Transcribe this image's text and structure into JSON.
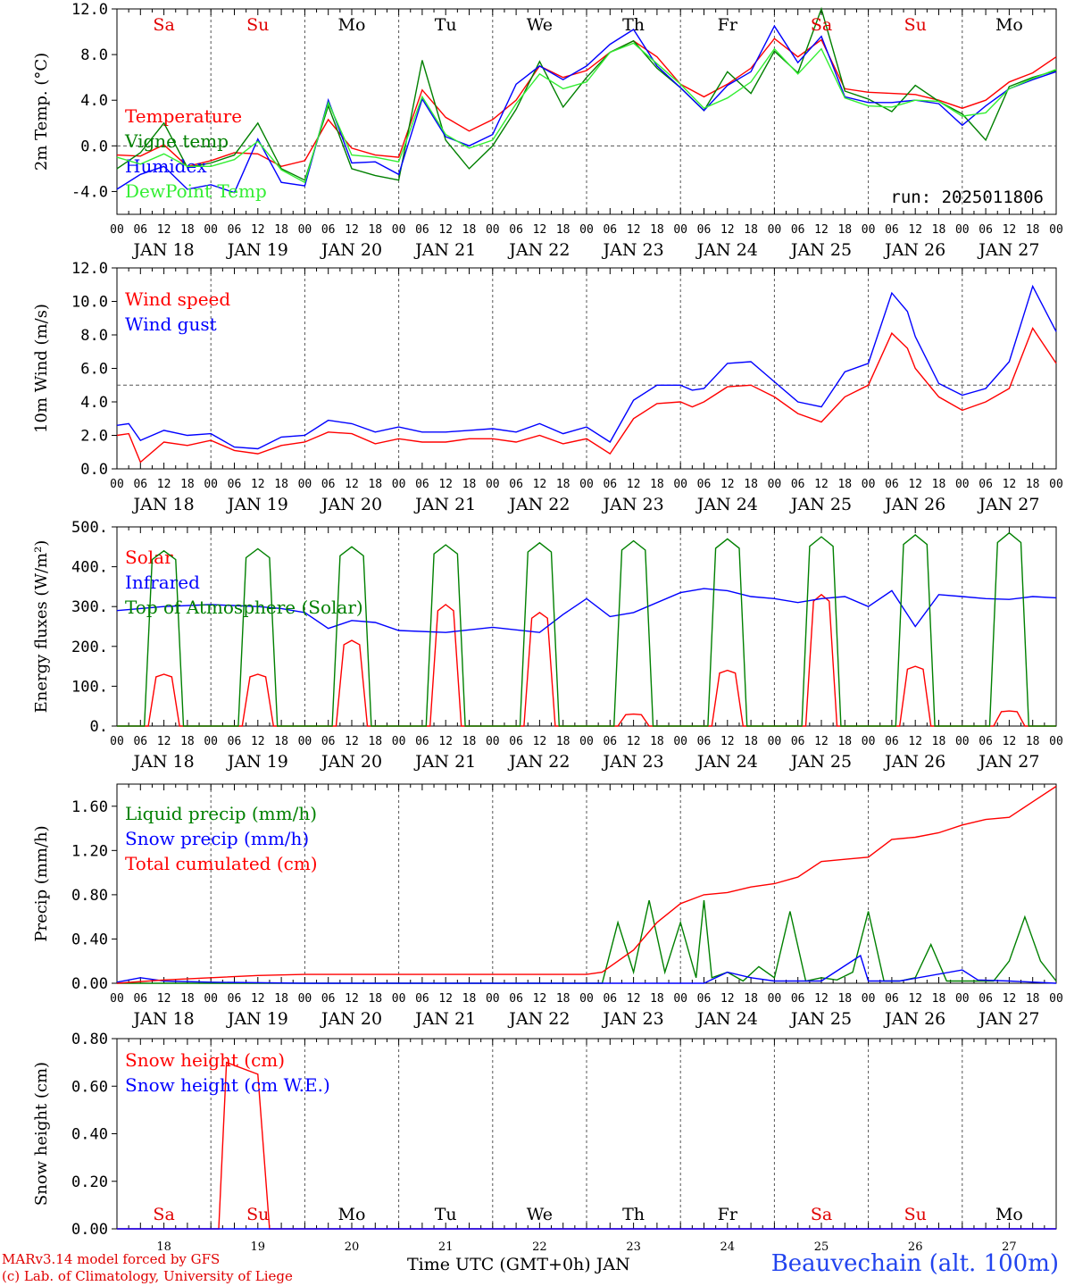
{
  "chart_data": [
    {
      "type": "line",
      "ylabel": "2m Temp. (°C)",
      "ylim": [
        -6,
        12
      ],
      "yticks": [
        "-4.0",
        "0.0",
        "4.0",
        "8.0",
        "12.0"
      ],
      "x_unit": "hours since JAN 18 00 UTC",
      "x": [
        0,
        6,
        12,
        18,
        24,
        30,
        36,
        42,
        48,
        54,
        60,
        66,
        72,
        78,
        84,
        90,
        96,
        102,
        108,
        114,
        120,
        126,
        132,
        138,
        144,
        150,
        156,
        162,
        168,
        174,
        180,
        186,
        192,
        198,
        204,
        210,
        216,
        222,
        228,
        234,
        240
      ],
      "reference_line": 0,
      "run_label": "run: 2025011806",
      "day_labels": [
        "Sa",
        "Su",
        "Mo",
        "Tu",
        "We",
        "Th",
        "Fr",
        "Sa",
        "Su",
        "Mo"
      ],
      "day_label_colors": [
        "#e00000",
        "#e00000",
        "#000000",
        "#000000",
        "#000000",
        "#000000",
        "#000000",
        "#e00000",
        "#e00000",
        "#000000"
      ],
      "series": [
        {
          "name": "Temperature",
          "color": "#ff0000",
          "values": [
            -0.8,
            -0.9,
            0.1,
            -1.8,
            -1.3,
            -0.6,
            -0.7,
            -1.8,
            -1.3,
            2.3,
            -0.2,
            -0.8,
            -1.0,
            4.9,
            2.5,
            1.3,
            2.3,
            4.0,
            7.0,
            6.0,
            6.6,
            8.2,
            9.2,
            7.8,
            5.4,
            4.3,
            5.4,
            6.8,
            9.4,
            7.8,
            9.3,
            5.0,
            4.7,
            4.6,
            4.5,
            4.0,
            3.3,
            4.0,
            5.6,
            6.4,
            7.8
          ]
        },
        {
          "name": "Vigne temp",
          "color": "#008000",
          "values": [
            -2.0,
            -0.6,
            2.0,
            -1.9,
            -1.5,
            -0.8,
            2.0,
            -2.0,
            -3.0,
            3.5,
            -2.0,
            -2.6,
            -3.0,
            7.5,
            0.5,
            -2.0,
            0.0,
            3.2,
            7.4,
            3.4,
            6.0,
            8.2,
            9.2,
            6.8,
            5.1,
            3.1,
            6.5,
            4.6,
            8.3,
            6.4,
            12.0,
            4.8,
            4.1,
            3.0,
            5.3,
            3.9,
            2.8,
            0.5,
            5.2,
            6.0,
            6.6
          ]
        },
        {
          "name": "Humidex",
          "color": "#0000ff",
          "values": [
            -3.8,
            -2.5,
            -1.8,
            -3.8,
            -3.4,
            -4.1,
            0.6,
            -3.2,
            -3.5,
            4.0,
            -1.5,
            -1.4,
            -2.5,
            4.1,
            0.8,
            0.0,
            1.0,
            5.4,
            7.0,
            5.8,
            7.0,
            8.9,
            10.2,
            7.0,
            5.1,
            3.1,
            5.3,
            6.5,
            10.5,
            7.3,
            9.6,
            4.3,
            3.8,
            3.8,
            4.0,
            3.7,
            1.8,
            3.5,
            5.0,
            5.8,
            6.5
          ]
        },
        {
          "name": "DewPoint Temp",
          "color": "#33ee33",
          "values": [
            -1.0,
            -1.6,
            -0.7,
            -1.8,
            -1.8,
            -1.2,
            0.4,
            -2.1,
            -3.2,
            3.8,
            -0.8,
            -1.0,
            -1.4,
            4.3,
            1.0,
            -0.2,
            0.5,
            3.7,
            6.3,
            5.0,
            5.6,
            8.2,
            9.0,
            7.2,
            5.4,
            3.3,
            4.2,
            5.6,
            8.5,
            6.3,
            8.5,
            4.2,
            3.5,
            3.4,
            4.0,
            3.9,
            2.6,
            2.9,
            5.0,
            5.9,
            6.7
          ]
        }
      ]
    },
    {
      "type": "line",
      "ylabel": "10m Wind (m/s)",
      "ylim": [
        0,
        12
      ],
      "yticks": [
        "0.0",
        "2.0",
        "4.0",
        "6.0",
        "8.0",
        "10.0",
        "12.0"
      ],
      "x_unit": "hours since JAN 18 00 UTC",
      "x": [
        0,
        3,
        6,
        12,
        18,
        24,
        30,
        36,
        42,
        48,
        54,
        60,
        66,
        72,
        78,
        84,
        90,
        96,
        102,
        108,
        114,
        120,
        126,
        132,
        138,
        144,
        147,
        150,
        156,
        162,
        168,
        174,
        180,
        186,
        192,
        198,
        202,
        204,
        210,
        216,
        222,
        228,
        234,
        240
      ],
      "reference_line": 5,
      "series": [
        {
          "name": "Wind speed",
          "color": "#ff0000",
          "values": [
            2.0,
            2.1,
            0.4,
            1.6,
            1.4,
            1.7,
            1.1,
            0.9,
            1.4,
            1.6,
            2.2,
            2.1,
            1.5,
            1.8,
            1.6,
            1.6,
            1.8,
            1.8,
            1.6,
            2.0,
            1.5,
            1.8,
            0.9,
            3.0,
            3.9,
            4.0,
            3.7,
            4.0,
            4.9,
            5.0,
            4.3,
            3.3,
            2.8,
            4.3,
            5.0,
            8.1,
            7.2,
            6.0,
            4.3,
            3.5,
            4.0,
            4.8,
            8.4,
            6.3
          ]
        },
        {
          "name": "Wind gust",
          "color": "#0000ff",
          "values": [
            2.6,
            2.7,
            1.7,
            2.3,
            2.0,
            2.1,
            1.3,
            1.2,
            1.9,
            2.0,
            2.9,
            2.7,
            2.2,
            2.5,
            2.2,
            2.2,
            2.3,
            2.4,
            2.2,
            2.7,
            2.1,
            2.5,
            1.6,
            4.1,
            5.0,
            5.0,
            4.7,
            4.8,
            6.3,
            6.4,
            5.2,
            4.0,
            3.7,
            5.8,
            6.3,
            10.5,
            9.4,
            7.9,
            5.1,
            4.4,
            4.8,
            6.4,
            10.9,
            8.2
          ]
        }
      ]
    },
    {
      "type": "line",
      "ylabel": "Energy fluxes (W/m²)",
      "ylim": [
        0,
        500
      ],
      "yticks": [
        "0.",
        "100.",
        "200.",
        "300.",
        "400.",
        "500."
      ],
      "x_unit": "hours since JAN 18 00 UTC",
      "series": [
        {
          "name": "Solar",
          "color": "#ff0000",
          "peaks": [
            130,
            130,
            215,
            305,
            285,
            30,
            140,
            330,
            150,
            38
          ]
        },
        {
          "name": "Infrared",
          "color": "#0000ff",
          "x": [
            0,
            12,
            24,
            36,
            42,
            48,
            54,
            60,
            66,
            72,
            84,
            96,
            108,
            114,
            120,
            126,
            132,
            144,
            150,
            156,
            162,
            168,
            174,
            180,
            186,
            192,
            198,
            204,
            210,
            216,
            222,
            228,
            234,
            240
          ],
          "values": [
            290,
            300,
            305,
            300,
            295,
            285,
            245,
            265,
            260,
            240,
            235,
            248,
            235,
            280,
            320,
            275,
            285,
            335,
            345,
            340,
            325,
            320,
            310,
            320,
            325,
            300,
            340,
            250,
            330,
            325,
            320,
            318,
            325,
            322
          ]
        },
        {
          "name": "Top of Atmosphere (Solar)",
          "color": "#008000",
          "peaks": [
            440,
            445,
            450,
            455,
            460,
            465,
            470,
            475,
            480,
            485
          ]
        }
      ]
    },
    {
      "type": "line",
      "ylabel": "Precip (mm/h)",
      "ylim": [
        0,
        1.8
      ],
      "yticks": [
        "0.00",
        "0.40",
        "0.80",
        "1.20",
        "1.60"
      ],
      "x_unit": "hours since JAN 18 00 UTC",
      "series": [
        {
          "name": "Liquid precip (mm/h)",
          "color": "#008000",
          "x": [
            0,
            120,
            124,
            128,
            132,
            136,
            140,
            144,
            148,
            150,
            152,
            156,
            160,
            164,
            168,
            172,
            176,
            180,
            184,
            188,
            192,
            196,
            200,
            204,
            208,
            212,
            216,
            220,
            224,
            228,
            232,
            236,
            240
          ],
          "values": [
            0,
            0,
            0,
            0.55,
            0.1,
            0.75,
            0.1,
            0.55,
            0.05,
            0.75,
            0.05,
            0.1,
            0.02,
            0.15,
            0.05,
            0.65,
            0.02,
            0.05,
            0.03,
            0.1,
            0.65,
            0.02,
            0.02,
            0.05,
            0.35,
            0.02,
            0.02,
            0.02,
            0.02,
            0.2,
            0.6,
            0.2,
            0.02
          ]
        },
        {
          "name": "Snow precip (mm/h)",
          "color": "#0000ff",
          "x": [
            0,
            6,
            12,
            24,
            48,
            120,
            150,
            156,
            162,
            168,
            180,
            190,
            192,
            200,
            216,
            220,
            228,
            240
          ],
          "values": [
            0.01,
            0.05,
            0.02,
            0.01,
            0.0,
            0.0,
            0.0,
            0.1,
            0.05,
            0.02,
            0.02,
            0.25,
            0.02,
            0.02,
            0.12,
            0.03,
            0.02,
            0.0
          ]
        },
        {
          "name": "Total cumulated (cm)",
          "color": "#ff0000",
          "x": [
            0,
            12,
            24,
            36,
            48,
            72,
            96,
            120,
            124,
            132,
            138,
            144,
            150,
            156,
            162,
            168,
            174,
            180,
            186,
            192,
            198,
            204,
            210,
            216,
            222,
            228,
            234,
            240
          ],
          "values": [
            0.0,
            0.03,
            0.05,
            0.07,
            0.08,
            0.08,
            0.08,
            0.08,
            0.1,
            0.3,
            0.55,
            0.72,
            0.8,
            0.82,
            0.87,
            0.9,
            0.96,
            1.1,
            1.12,
            1.14,
            1.3,
            1.32,
            1.36,
            1.43,
            1.48,
            1.5,
            1.64,
            1.78
          ]
        }
      ]
    },
    {
      "type": "line",
      "ylabel": "Snow height (cm)",
      "ylim": [
        0,
        0.8
      ],
      "yticks": [
        "0.00",
        "0.20",
        "0.40",
        "0.60",
        "0.80"
      ],
      "x_unit": "hours since JAN 18 00 UTC",
      "day_labels": [
        "Sa",
        "Su",
        "Mo",
        "Tu",
        "We",
        "Th",
        "Fr",
        "Sa",
        "Su",
        "Mo"
      ],
      "day_label_colors": [
        "#e00000",
        "#e00000",
        "#000000",
        "#000000",
        "#000000",
        "#000000",
        "#000000",
        "#e00000",
        "#e00000",
        "#000000"
      ],
      "day_numbers": [
        "18",
        "19",
        "20",
        "21",
        "22",
        "23",
        "24",
        "25",
        "26",
        "27"
      ],
      "series": [
        {
          "name": "Snow height (cm)",
          "color": "#ff0000",
          "x": [
            0,
            26,
            28,
            36,
            39,
            240
          ],
          "values": [
            0,
            0,
            0.7,
            0.65,
            0,
            0
          ]
        },
        {
          "name": "Snow height (cm W.E.)",
          "color": "#0000ff",
          "x": [
            0,
            240
          ],
          "values": [
            0,
            0
          ]
        }
      ]
    }
  ],
  "x_axis": {
    "hour_ticks": [
      "00",
      "06",
      "12",
      "18"
    ],
    "end_tick": "00",
    "date_labels": [
      "JAN 18",
      "JAN 19",
      "JAN 20",
      "JAN 21",
      "JAN 22",
      "JAN 23",
      "JAN 24",
      "JAN 25",
      "JAN 26",
      "JAN 27"
    ],
    "title": "Time UTC (GMT+0h) JAN"
  },
  "footer": {
    "credit_line1": "MARv3.14 model forced by GFS",
    "credit_line2": "(c) Lab. of Climatology, University of Liege",
    "station": "Beauvechain (alt. 100m)"
  }
}
